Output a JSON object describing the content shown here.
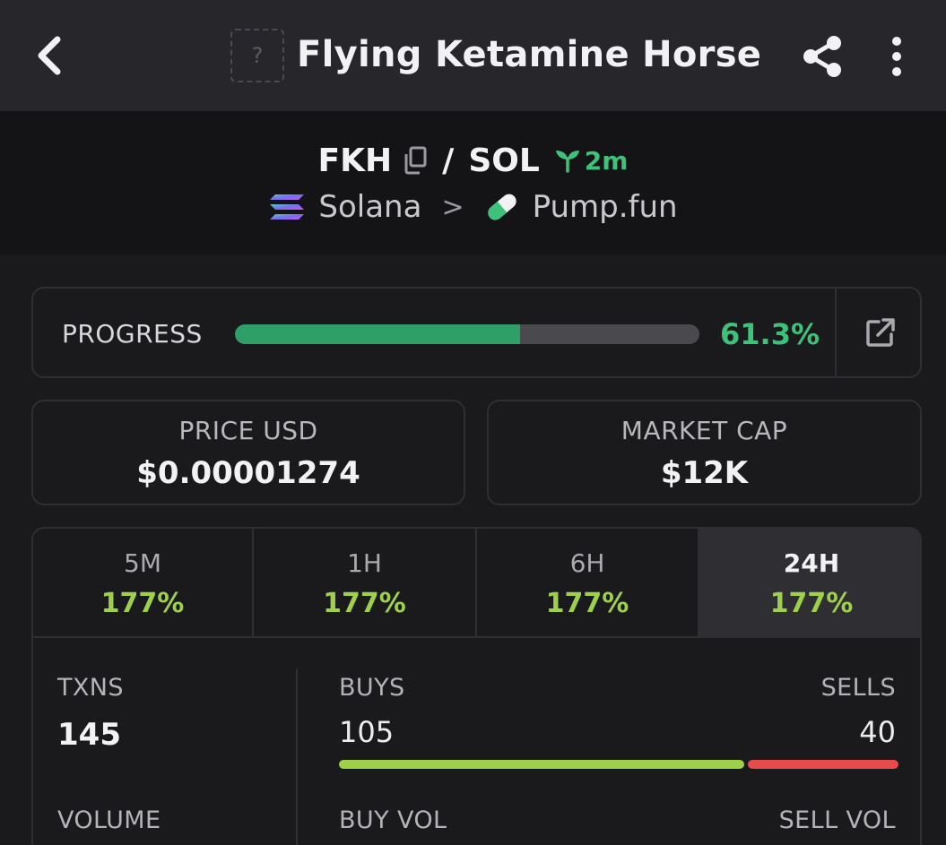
{
  "header": {
    "title": "Flying Ketamine Horse",
    "logo_placeholder": "?"
  },
  "pair": {
    "symbol": "FKH",
    "separator": "/",
    "quote": "SOL",
    "age": "2m",
    "chain": "Solana",
    "chain_separator": ">",
    "dex": "Pump.fun"
  },
  "progress": {
    "label": "PROGRESS",
    "value_text": "61.3%",
    "fraction": 0.613
  },
  "stats": {
    "price_label": "PRICE USD",
    "price_value": "$0.00001274",
    "mcap_label": "MARKET CAP",
    "mcap_value": "$12K"
  },
  "timeframes": [
    {
      "label": "5M",
      "value": "177%"
    },
    {
      "label": "1H",
      "value": "177%"
    },
    {
      "label": "6H",
      "value": "177%"
    },
    {
      "label": "24H",
      "value": "177%",
      "active": true
    }
  ],
  "txns": {
    "txns_label": "TXNS",
    "txns_value": "145",
    "buys_label": "BUYS",
    "buys_value": "105",
    "sells_label": "SELLS",
    "sells_value": "40",
    "volume_label": "VOLUME",
    "buy_vol_label": "BUY VOL",
    "sell_vol_label": "SELL VOL"
  },
  "colors": {
    "accent_green": "#3ec27a",
    "change_green": "#9ed04a",
    "sell_red": "#e84b4b"
  },
  "icons": {
    "back": "chevron-left-icon",
    "share": "share-icon",
    "more": "more-vertical-icon",
    "copy": "copy-icon",
    "age": "sprout-icon",
    "chain": "solana-icon",
    "dex": "pill-icon",
    "open": "external-link-icon"
  }
}
